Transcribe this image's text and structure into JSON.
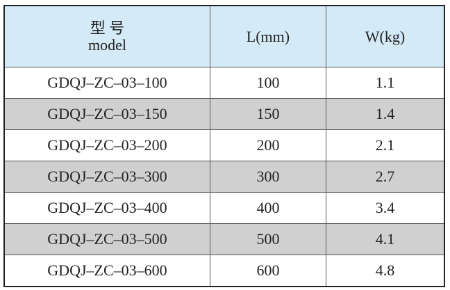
{
  "table": {
    "header": [
      {
        "zh": "型 号",
        "en": "model"
      },
      "L(mm)",
      "W(kg)"
    ],
    "rows": [
      [
        "GDQJ–ZC–03–100",
        "100",
        "1.1"
      ],
      [
        "GDQJ–ZC–03–150",
        "150",
        "1.4"
      ],
      [
        "GDQJ–ZC–03–200",
        "200",
        "2.1"
      ],
      [
        "GDQJ–ZC–03–300",
        "300",
        "2.7"
      ],
      [
        "GDQJ–ZC–03–400",
        "400",
        "3.4"
      ],
      [
        "GDQJ–ZC–03–500",
        "500",
        "4.1"
      ],
      [
        "GDQJ–ZC–03–600",
        "600",
        "4.8"
      ]
    ]
  }
}
